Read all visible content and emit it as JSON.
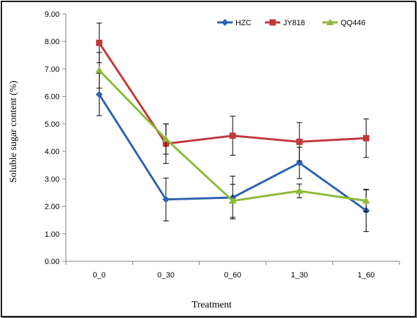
{
  "chart_data": {
    "type": "line",
    "title": "",
    "xlabel": "Treatment",
    "ylabel": "Soluble sugar content (%)",
    "categories": [
      "0_0",
      "0_30",
      "0_60",
      "1_30",
      "1_60"
    ],
    "ylim": [
      0,
      9
    ],
    "yticks": [
      "0.00",
      "1.00",
      "2.00",
      "3.00",
      "4.00",
      "5.00",
      "6.00",
      "7.00",
      "8.00",
      "9.00"
    ],
    "grid": false,
    "legend_position": "top-right",
    "series": [
      {
        "name": "HZC",
        "color": "#2e62b0",
        "marker": "diamond",
        "values": [
          6.07,
          2.25,
          2.32,
          3.58,
          1.85
        ],
        "error": [
          0.77,
          0.78,
          0.78,
          0.57,
          0.77
        ]
      },
      {
        "name": "JY818",
        "color": "#c0393b",
        "marker": "square",
        "values": [
          7.95,
          4.28,
          4.57,
          4.35,
          4.48
        ],
        "error": [
          0.72,
          0.72,
          0.71,
          0.7,
          0.7
        ]
      },
      {
        "name": "QQ446",
        "color": "#8dba3a",
        "marker": "triangle",
        "values": [
          6.95,
          4.45,
          2.2,
          2.56,
          2.2
        ],
        "error": [
          0.65,
          0.55,
          0.6,
          0.25,
          0.4
        ]
      }
    ]
  }
}
